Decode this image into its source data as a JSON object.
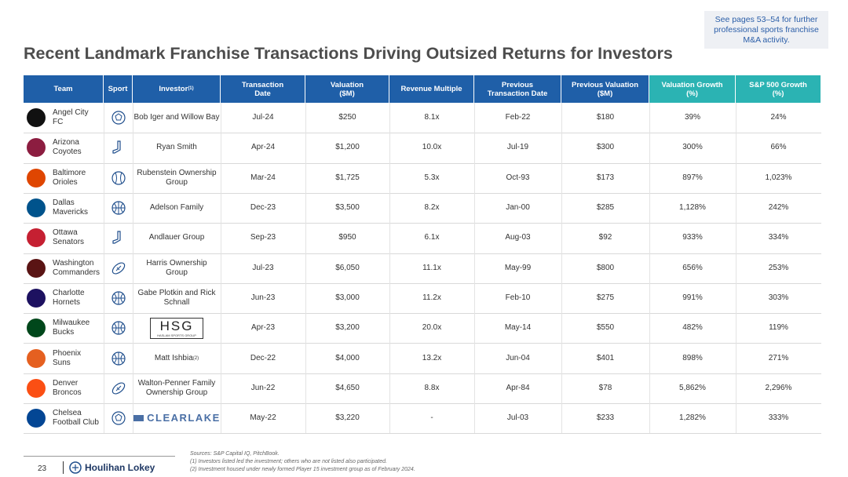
{
  "callout": "See pages 53–54 for further professional sports franchise M&A activity.",
  "title": "Recent Landmark Franchise Transactions Driving Outsized Returns for Investors",
  "table": {
    "columns": [
      "Team",
      "Sport",
      "Investor",
      "Transaction\nDate",
      "Valuation\n($M)",
      "Revenue Multiple",
      "Previous\nTransaction Date",
      "Previous Valuation\n($M)",
      "Valuation Growth\n(%)",
      "S&P 500 Growth\n(%)"
    ],
    "investor_header_note": "(1)",
    "rows": [
      {
        "team": "Angel City\nFC",
        "investor": "Bob Iger and Willow Bay",
        "date": "Jul-24",
        "valuation": "$250",
        "multiple": "8.1x",
        "prev_date": "Feb-22",
        "prev_valuation": "$180",
        "growth": "39%",
        "sp_growth": "24%"
      },
      {
        "team": "Arizona\nCoyotes",
        "investor": "Ryan Smith",
        "date": "Apr-24",
        "valuation": "$1,200",
        "multiple": "10.0x",
        "prev_date": "Jul-19",
        "prev_valuation": "$300",
        "growth": "300%",
        "sp_growth": "66%"
      },
      {
        "team": "Baltimore\nOrioles",
        "investor": "Rubenstein Ownership\nGroup",
        "date": "Mar-24",
        "valuation": "$1,725",
        "multiple": "5.3x",
        "prev_date": "Oct-93",
        "prev_valuation": "$173",
        "growth": "897%",
        "sp_growth": "1,023%"
      },
      {
        "team": "Dallas\nMavericks",
        "investor": "Adelson Family",
        "date": "Dec-23",
        "valuation": "$3,500",
        "multiple": "8.2x",
        "prev_date": "Jan-00",
        "prev_valuation": "$285",
        "growth": "1,128%",
        "sp_growth": "242%"
      },
      {
        "team": "Ottawa\nSenators",
        "investor": "Andlauer Group",
        "date": "Sep-23",
        "valuation": "$950",
        "multiple": "6.1x",
        "prev_date": "Aug-03",
        "prev_valuation": "$92",
        "growth": "933%",
        "sp_growth": "334%"
      },
      {
        "team": "Washington\nCommanders",
        "investor": "Harris Ownership\nGroup",
        "date": "Jul-23",
        "valuation": "$6,050",
        "multiple": "11.1x",
        "prev_date": "May-99",
        "prev_valuation": "$800",
        "growth": "656%",
        "sp_growth": "253%"
      },
      {
        "team": "Charlotte\nHornets",
        "investor": "Gabe Plotkin and Rick\nSchnall",
        "date": "Jun-23",
        "valuation": "$3,000",
        "multiple": "11.2x",
        "prev_date": "Feb-10",
        "prev_valuation": "$275",
        "growth": "991%",
        "sp_growth": "303%"
      },
      {
        "team": "Milwaukee\nBucks",
        "investor": "HSG",
        "investor_sub": "HASLAM SPORTS GROUP",
        "date": "Apr-23",
        "valuation": "$3,200",
        "multiple": "20.0x",
        "prev_date": "May-14",
        "prev_valuation": "$550",
        "growth": "482%",
        "sp_growth": "119%"
      },
      {
        "team": "Phoenix\nSuns",
        "investor": "Matt Ishbia",
        "investor_note": "(2)",
        "date": "Dec-22",
        "valuation": "$4,000",
        "multiple": "13.2x",
        "prev_date": "Jun-04",
        "prev_valuation": "$401",
        "growth": "898%",
        "sp_growth": "271%"
      },
      {
        "team": "Denver\nBroncos",
        "investor": "Walton-Penner Family\nOwnership Group",
        "date": "Jun-22",
        "valuation": "$4,650",
        "multiple": "8.8x",
        "prev_date": "Apr-84",
        "prev_valuation": "$78",
        "growth": "5,862%",
        "sp_growth": "2,296%"
      },
      {
        "team": "Chelsea\nFootball Club",
        "investor": "CLEARLAKE",
        "date": "May-22",
        "valuation": "$3,220",
        "multiple": "-",
        "prev_date": "Jul-03",
        "prev_valuation": "$233",
        "growth": "1,282%",
        "sp_growth": "333%"
      }
    ]
  },
  "footnotes": [
    "Sources: S&P Capital IQ, PitchBook.",
    "(1)      Investors listed led the investment; others who are not listed also participated.",
    "(2)      Investment housed under newly formed Player 15 investment group as of February 2024."
  ],
  "page_number": "23",
  "brand": "Houlihan Lokey"
}
